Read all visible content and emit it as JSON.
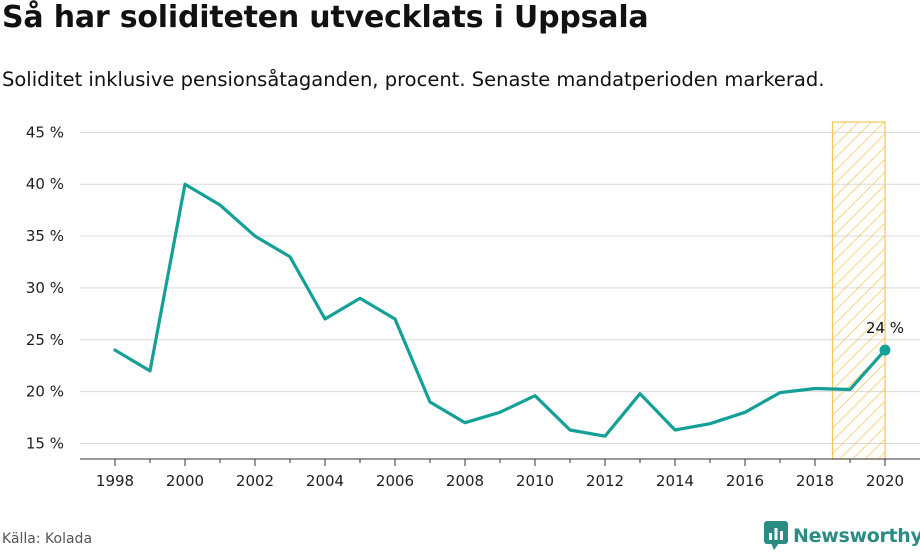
{
  "title": "Så har soliditeten utvecklats i Uppsala",
  "subtitle": "Soliditet inklusive pensionsåtaganden, procent. Senaste mandatperioden markerad.",
  "source": "Källa: Kolada",
  "brand": {
    "name": "Newsworthy",
    "icon": "newsworthy-logo-icon",
    "color": "#2a8c83"
  },
  "chart_data": {
    "type": "line",
    "x": [
      1998,
      1999,
      2000,
      2001,
      2002,
      2003,
      2004,
      2005,
      2006,
      2007,
      2008,
      2009,
      2010,
      2011,
      2012,
      2013,
      2014,
      2015,
      2016,
      2017,
      2018,
      2019,
      2020
    ],
    "series": [
      {
        "values": [
          24,
          22,
          40,
          38,
          35,
          33,
          27,
          29,
          27,
          19,
          17,
          18,
          19.6,
          16.3,
          15.7,
          19.8,
          16.3,
          16.9,
          18,
          19.9,
          20.3,
          20.2,
          24
        ],
        "color": "#14a096"
      }
    ],
    "xticks": [
      1998,
      2000,
      2002,
      2004,
      2006,
      2008,
      2010,
      2012,
      2014,
      2016,
      2018,
      2020
    ],
    "yticks": [
      15,
      20,
      25,
      30,
      35,
      40,
      45
    ],
    "ytick_labels": [
      "15 %",
      "20 %",
      "25 %",
      "30 %",
      "35 %",
      "40 %",
      "45 %"
    ],
    "xlim": [
      1997,
      2021
    ],
    "ylim": [
      13.5,
      46
    ],
    "grid": "horizontal",
    "highlight": {
      "x_start": 2018.5,
      "x_end": 2020,
      "color": "#f6c453",
      "label": "Senaste mandatperioden"
    },
    "end_label": {
      "x": 2020,
      "y": 24,
      "text": "24 %"
    }
  }
}
